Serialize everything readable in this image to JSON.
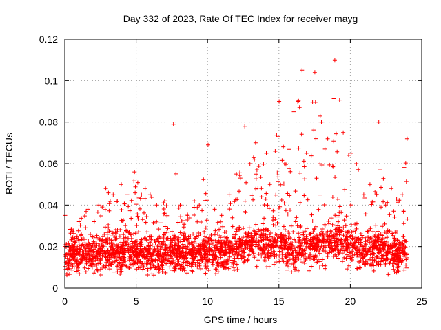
{
  "chart_data": {
    "type": "scatter",
    "title": "Day 332 of 2023, Rate Of TEC Index for receiver mayg",
    "xlabel": "GPS time / hours",
    "ylabel": "ROTI / TECUs",
    "xlim": [
      0,
      25
    ],
    "ylim": [
      0,
      0.12
    ],
    "x_ticks": [
      "0",
      "5",
      "10",
      "15",
      "20",
      "25"
    ],
    "y_ticks": [
      "0",
      "0.02",
      "0.04",
      "0.06",
      "0.08",
      "0.1",
      "0.12"
    ],
    "grid": true,
    "marker": "+",
    "colors": {
      "series": "#ff0000",
      "grid": "#a0a0a0",
      "axis": "#000000"
    },
    "profile": {
      "x": [
        0,
        0.5,
        1,
        1.5,
        2,
        2.5,
        3,
        3.5,
        4,
        4.5,
        5,
        5.5,
        6,
        6.5,
        7,
        7.5,
        8,
        8.5,
        9,
        9.5,
        10,
        10.5,
        11,
        11.5,
        12,
        12.5,
        13,
        13.5,
        14,
        14.5,
        15,
        15.5,
        16,
        16.5,
        17,
        17.5,
        18,
        18.5,
        19,
        19.5,
        20,
        20.5,
        21,
        21.5,
        22,
        22.5,
        23,
        23.5,
        24
      ],
      "typical": [
        0.015,
        0.015,
        0.015,
        0.016,
        0.015,
        0.016,
        0.017,
        0.017,
        0.017,
        0.017,
        0.017,
        0.017,
        0.016,
        0.016,
        0.016,
        0.017,
        0.017,
        0.017,
        0.017,
        0.017,
        0.018,
        0.017,
        0.017,
        0.017,
        0.019,
        0.021,
        0.022,
        0.022,
        0.021,
        0.02,
        0.02,
        0.019,
        0.019,
        0.019,
        0.02,
        0.02,
        0.021,
        0.022,
        0.022,
        0.021,
        0.02,
        0.019,
        0.019,
        0.019,
        0.018,
        0.018,
        0.017,
        0.016,
        0.016
      ],
      "upper": [
        0.035,
        0.028,
        0.032,
        0.038,
        0.032,
        0.04,
        0.048,
        0.045,
        0.05,
        0.045,
        0.056,
        0.048,
        0.045,
        0.04,
        0.042,
        0.079,
        0.04,
        0.035,
        0.042,
        0.04,
        0.069,
        0.038,
        0.035,
        0.045,
        0.055,
        0.078,
        0.06,
        0.07,
        0.065,
        0.05,
        0.09,
        0.06,
        0.085,
        0.105,
        0.065,
        0.104,
        0.08,
        0.072,
        0.11,
        0.075,
        0.065,
        0.06,
        0.045,
        0.05,
        0.08,
        0.04,
        0.048,
        0.045,
        0.072
      ]
    }
  }
}
